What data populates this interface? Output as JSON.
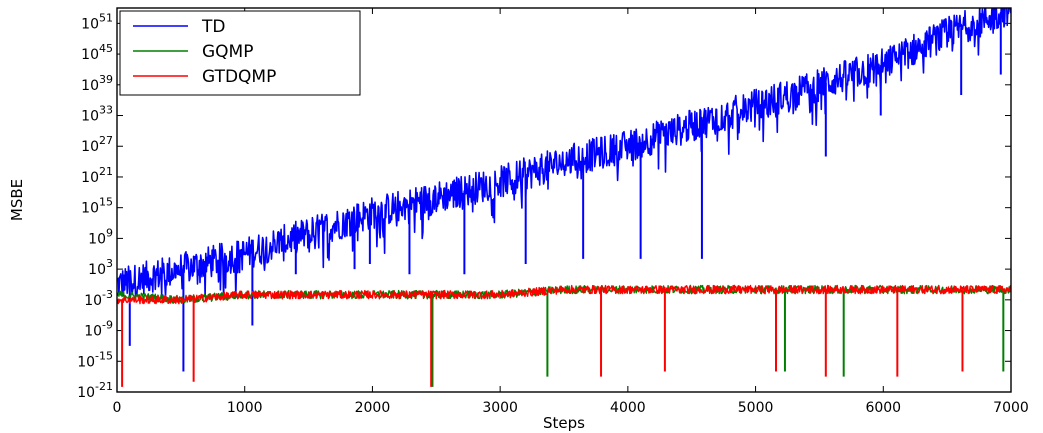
{
  "chart_data": {
    "type": "line",
    "xlabel": "Steps",
    "ylabel": "MSBE",
    "xlim": [
      0,
      7000
    ],
    "ylim_log10": [
      -21,
      54
    ],
    "yscale": "log",
    "grid": false,
    "legend_position": "top-left",
    "x_ticks": [
      0,
      1000,
      2000,
      3000,
      4000,
      5000,
      6000,
      7000
    ],
    "x_tick_labels": [
      "0",
      "1000",
      "2000",
      "3000",
      "4000",
      "5000",
      "6000",
      "7000"
    ],
    "y_ticks_log10": [
      -21,
      -15,
      -9,
      -3,
      3,
      9,
      15,
      21,
      27,
      33,
      39,
      45,
      51
    ],
    "y_tick_labels": [
      {
        "base": "10",
        "exp": "-21"
      },
      {
        "base": "10",
        "exp": "-15"
      },
      {
        "base": "10",
        "exp": "-9"
      },
      {
        "base": "10",
        "exp": "-3"
      },
      {
        "base": "10",
        "exp": "3"
      },
      {
        "base": "10",
        "exp": "9"
      },
      {
        "base": "10",
        "exp": "15"
      },
      {
        "base": "10",
        "exp": "21"
      },
      {
        "base": "10",
        "exp": "27"
      },
      {
        "base": "10",
        "exp": "33"
      },
      {
        "base": "10",
        "exp": "39"
      },
      {
        "base": "10",
        "exp": "45"
      },
      {
        "base": "10",
        "exp": "51"
      }
    ],
    "series": [
      {
        "name": "TD",
        "color": "#0000ff",
        "x": [
          0,
          500,
          1000,
          1500,
          2000,
          2500,
          3000,
          3500,
          4000,
          4500,
          5000,
          5500,
          6000,
          6500,
          7000
        ],
        "y_log10": [
          0,
          3,
          6,
          10,
          14,
          17,
          20,
          24,
          27,
          31,
          35,
          39,
          43,
          49,
          54
        ],
        "dips": [
          {
            "x": 100,
            "y_log10": -12
          },
          {
            "x": 520,
            "y_log10": -17
          },
          {
            "x": 1060,
            "y_log10": -8
          },
          {
            "x": 1400,
            "y_log10": 2
          },
          {
            "x": 1860,
            "y_log10": 3
          },
          {
            "x": 1980,
            "y_log10": 4
          },
          {
            "x": 2290,
            "y_log10": 2
          },
          {
            "x": 2720,
            "y_log10": 2
          },
          {
            "x": 3200,
            "y_log10": 4
          },
          {
            "x": 3650,
            "y_log10": 5
          },
          {
            "x": 4100,
            "y_log10": 5
          },
          {
            "x": 4580,
            "y_log10": 5
          },
          {
            "x": 5550,
            "y_log10": 25
          },
          {
            "x": 5980,
            "y_log10": 33
          },
          {
            "x": 6610,
            "y_log10": 37
          },
          {
            "x": 6920,
            "y_log10": 41
          }
        ]
      },
      {
        "name": "GQMP",
        "color": "#008000",
        "x": [
          0,
          500,
          1000,
          1500,
          2000,
          2500,
          3000,
          3500,
          4000,
          4500,
          5000,
          5500,
          6000,
          6500,
          7000
        ],
        "y_log10": [
          -2,
          -3,
          -2,
          -2,
          -2,
          -2,
          -2,
          -1,
          -1,
          -1,
          -1,
          -1,
          -1,
          -1,
          -1
        ],
        "dips": [
          {
            "x": 2470,
            "y_log10": -20
          },
          {
            "x": 3370,
            "y_log10": -18
          },
          {
            "x": 5230,
            "y_log10": -17
          },
          {
            "x": 5690,
            "y_log10": -18
          },
          {
            "x": 6940,
            "y_log10": -17
          }
        ]
      },
      {
        "name": "GTDQMP",
        "color": "#ff0000",
        "x": [
          0,
          500,
          1000,
          1500,
          2000,
          2500,
          3000,
          3500,
          4000,
          4500,
          5000,
          5500,
          6000,
          6500,
          7000
        ],
        "y_log10": [
          -3,
          -3,
          -2,
          -2,
          -2,
          -2,
          -2,
          -1,
          -1,
          -1,
          -1,
          -1,
          -1,
          -1,
          -1
        ],
        "dips": [
          {
            "x": 40,
            "y_log10": -20
          },
          {
            "x": 600,
            "y_log10": -19
          },
          {
            "x": 2460,
            "y_log10": -20
          },
          {
            "x": 3790,
            "y_log10": -18
          },
          {
            "x": 4290,
            "y_log10": -17
          },
          {
            "x": 5160,
            "y_log10": -17
          },
          {
            "x": 5550,
            "y_log10": -18
          },
          {
            "x": 6110,
            "y_log10": -18
          },
          {
            "x": 6620,
            "y_log10": -17
          }
        ]
      }
    ]
  }
}
